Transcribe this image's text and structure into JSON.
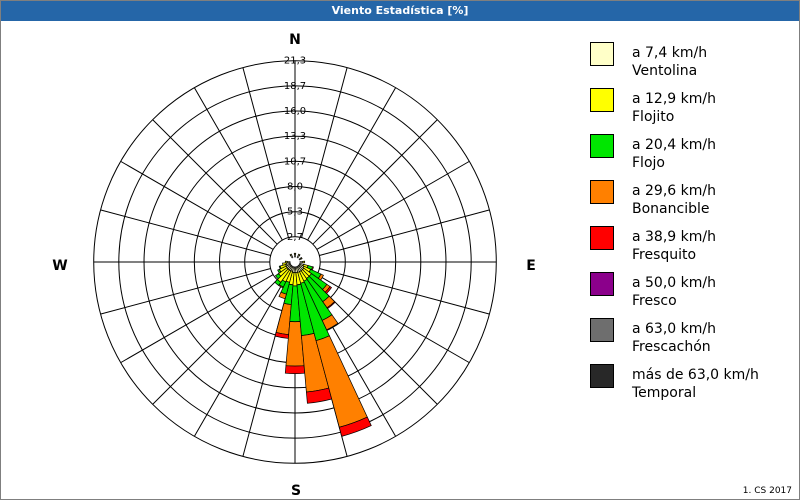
{
  "window": {
    "title": "Viento Estadística [%]"
  },
  "footer": {
    "text": "1. CS 2017"
  },
  "chart_data": {
    "type": "wind-rose",
    "title": "Viento Estadística [%]",
    "max_value": 21.3,
    "ring_labels": [
      "2,7",
      "5,3",
      "8,0",
      "10,7",
      "13,3",
      "16,0",
      "18,7",
      "21,3"
    ],
    "ring_values": [
      2.67,
      5.33,
      8.0,
      10.67,
      13.33,
      16.0,
      18.67,
      21.33
    ],
    "directions": [
      "N",
      "E",
      "S",
      "W"
    ],
    "sectors": [
      {
        "direction": "SSW",
        "angle": 190,
        "values": [
          0.6,
          1.3,
          2.1,
          3.2,
          0.4,
          0.0,
          0.0,
          0.0
        ]
      },
      {
        "direction": "S",
        "angle": 180,
        "values": [
          0.6,
          1.4,
          3.8,
          4.7,
          0.8,
          0.0,
          0.0,
          0.0
        ]
      },
      {
        "direction": "SSE",
        "angle": 170,
        "values": [
          0.6,
          1.3,
          5.4,
          6.0,
          1.2,
          0.0,
          0.0,
          0.0
        ]
      },
      {
        "direction": "SSE2",
        "angle": 160,
        "values": [
          0.6,
          1.2,
          6.3,
          9.5,
          1.0,
          0.0,
          0.0,
          0.0
        ]
      },
      {
        "direction": "SE",
        "angle": 150,
        "values": [
          0.6,
          1.1,
          4.6,
          1.1,
          0.0,
          0.0,
          0.0,
          0.0
        ]
      },
      {
        "direction": "SE2",
        "angle": 140,
        "values": [
          0.6,
          1.0,
          3.0,
          0.8,
          0.1,
          0.0,
          0.0,
          0.0
        ]
      },
      {
        "direction": "ESE",
        "angle": 130,
        "values": [
          0.6,
          1.0,
          2.0,
          0.4,
          0.2,
          0.0,
          0.0,
          0.0
        ]
      },
      {
        "direction": "ESE2",
        "angle": 120,
        "values": [
          0.5,
          0.8,
          1.2,
          0.3,
          0.0,
          0.0,
          0.0,
          0.0
        ]
      },
      {
        "direction": "E",
        "angle": 110,
        "values": [
          0.4,
          0.5,
          0.5,
          0.1,
          0.0,
          0.0,
          0.0,
          0.0
        ]
      },
      {
        "direction": "SSW2",
        "angle": 200,
        "values": [
          0.5,
          1.2,
          1.3,
          0.5,
          0.0,
          0.0,
          0.0,
          0.0
        ]
      },
      {
        "direction": "SW",
        "angle": 210,
        "values": [
          0.5,
          1.3,
          0.6,
          0.1,
          0.0,
          0.0,
          0.0,
          0.0
        ]
      },
      {
        "direction": "SW2",
        "angle": 220,
        "values": [
          0.5,
          1.6,
          0.4,
          0.0,
          0.0,
          0.0,
          0.0,
          0.0
        ]
      },
      {
        "direction": "WSW",
        "angle": 230,
        "values": [
          0.5,
          1.1,
          0.4,
          0.0,
          0.0,
          0.0,
          0.0,
          0.0
        ]
      },
      {
        "direction": "WSW2",
        "angle": 240,
        "values": [
          0.5,
          0.8,
          0.2,
          0.0,
          0.0,
          0.0,
          0.0,
          0.0
        ]
      },
      {
        "direction": "W",
        "angle": 250,
        "values": [
          0.5,
          0.6,
          0.1,
          0.0,
          0.0,
          0.0,
          0.0,
          0.0
        ]
      },
      {
        "direction": "W2",
        "angle": 260,
        "values": [
          0.4,
          0.4,
          0.0,
          0.0,
          0.0,
          0.0,
          0.0,
          0.0
        ]
      },
      {
        "direction": "WNW",
        "angle": 270,
        "values": [
          0.3,
          0.2,
          0.0,
          0.0,
          0.0,
          0.0,
          0.0,
          0.0
        ]
      },
      {
        "direction": "NE",
        "angle": 60,
        "values": [
          0.2,
          0.1,
          0.0,
          0.0,
          0.0,
          0.0,
          0.0,
          0.0
        ]
      },
      {
        "direction": "N",
        "angle": 0,
        "values": [
          0.3,
          0.1,
          0.0,
          0.0,
          0.0,
          0.0,
          0.0,
          0.0
        ]
      },
      {
        "direction": "NNE",
        "angle": 30,
        "values": [
          0.3,
          0.1,
          0.0,
          0.0,
          0.0,
          0.0,
          0.0,
          0.0
        ]
      },
      {
        "direction": "NW",
        "angle": 330,
        "values": [
          0.3,
          0.1,
          0.0,
          0.0,
          0.0,
          0.0,
          0.0,
          0.0
        ]
      },
      {
        "direction": "E2",
        "angle": 90,
        "values": [
          0.3,
          0.2,
          0.0,
          0.0,
          0.0,
          0.0,
          0.0,
          0.0
        ]
      }
    ],
    "legend": [
      {
        "line1": "a 7,4 km/h",
        "line2": "Ventolina",
        "color": "#ffffc8"
      },
      {
        "line1": "a 12,9 km/h",
        "line2": "Flojito",
        "color": "#ffff00"
      },
      {
        "line1": "a 20,4 km/h",
        "line2": "Flojo",
        "color": "#00e600"
      },
      {
        "line1": "a 29,6 km/h",
        "line2": "Bonancible",
        "color": "#ff8000"
      },
      {
        "line1": "a 38,9 km/h",
        "line2": "Fresquito",
        "color": "#ff0000"
      },
      {
        "line1": "a 50,0 km/h",
        "line2": "Fresco",
        "color": "#8b008b"
      },
      {
        "line1": "a 63,0 km/h",
        "line2": "Frescachón",
        "color": "#6e6e6e"
      },
      {
        "line1": "más de 63,0 km/h",
        "line2": "Temporal",
        "color": "#282828"
      }
    ]
  }
}
